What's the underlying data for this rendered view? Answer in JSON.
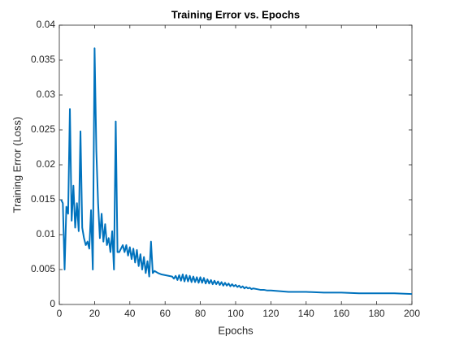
{
  "chart_data": {
    "type": "line",
    "title": "Training Error vs. Epochs",
    "x_label": "Epochs",
    "y_label": "Training Error (Loss)",
    "x": [
      1,
      2,
      3,
      4,
      5,
      6,
      7,
      8,
      9,
      10,
      11,
      12,
      13,
      14,
      15,
      16,
      17,
      18,
      19,
      20,
      21,
      22,
      23,
      24,
      25,
      26,
      27,
      28,
      29,
      30,
      31,
      32,
      33,
      34,
      35,
      36,
      37,
      38,
      39,
      40,
      41,
      42,
      43,
      44,
      45,
      46,
      47,
      48,
      49,
      50,
      51,
      52,
      53,
      54,
      56,
      58,
      60,
      62,
      64,
      65,
      66,
      67,
      68,
      69,
      70,
      71,
      72,
      73,
      74,
      75,
      76,
      77,
      78,
      79,
      80,
      81,
      82,
      83,
      84,
      85,
      86,
      87,
      88,
      89,
      90,
      91,
      92,
      93,
      94,
      95,
      96,
      97,
      98,
      99,
      100,
      101,
      102,
      103,
      104,
      105,
      106,
      107,
      108,
      109,
      110,
      112,
      114,
      116,
      118,
      120,
      125,
      130,
      140,
      150,
      160,
      170,
      180,
      190,
      200
    ],
    "series": [
      {
        "name": "Training Error",
        "color": "#0072bd",
        "values": [
          0.015,
          0.0145,
          0.005,
          0.014,
          0.013,
          0.028,
          0.012,
          0.017,
          0.011,
          0.0145,
          0.0105,
          0.0248,
          0.011,
          0.0095,
          0.0085,
          0.009,
          0.008,
          0.0135,
          0.005,
          0.0367,
          0.022,
          0.0145,
          0.0095,
          0.013,
          0.009,
          0.0115,
          0.0085,
          0.0095,
          0.0075,
          0.0105,
          0.005,
          0.0262,
          0.0075,
          0.0075,
          0.008,
          0.0085,
          0.0075,
          0.0085,
          0.007,
          0.0082,
          0.0065,
          0.008,
          0.006,
          0.0078,
          0.0055,
          0.0072,
          0.005,
          0.0068,
          0.0045,
          0.0062,
          0.004,
          0.009,
          0.0045,
          0.0048,
          0.0045,
          0.0043,
          0.0042,
          0.0041,
          0.004,
          0.0037,
          0.0041,
          0.0035,
          0.0042,
          0.0034,
          0.0043,
          0.0033,
          0.0042,
          0.0033,
          0.0041,
          0.0032,
          0.004,
          0.0032,
          0.0039,
          0.0031,
          0.0039,
          0.0031,
          0.0038,
          0.003,
          0.0036,
          0.003,
          0.0035,
          0.0029,
          0.0034,
          0.0029,
          0.0033,
          0.0028,
          0.0032,
          0.0027,
          0.0031,
          0.0027,
          0.003,
          0.0026,
          0.0029,
          0.0026,
          0.0028,
          0.0025,
          0.0027,
          0.0024,
          0.0026,
          0.0023,
          0.0025,
          0.0023,
          0.0024,
          0.0022,
          0.0023,
          0.0022,
          0.0021,
          0.0021,
          0.002,
          0.002,
          0.0019,
          0.0018,
          0.0018,
          0.0017,
          0.0017,
          0.0016,
          0.0016,
          0.0016,
          0.0015
        ]
      }
    ],
    "xlim": [
      0,
      200
    ],
    "xticks": [
      0,
      20,
      40,
      60,
      80,
      100,
      120,
      140,
      160,
      180,
      200
    ],
    "ylim": [
      0,
      0.04
    ],
    "yticks": [
      0,
      0.005,
      0.01,
      0.015,
      0.02,
      0.025,
      0.03,
      0.035,
      0.04
    ],
    "grid": false
  }
}
